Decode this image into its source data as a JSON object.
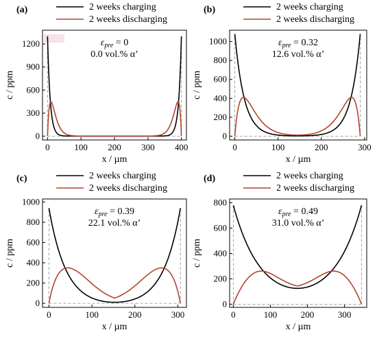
{
  "legend": {
    "charging": "2 weeks charging",
    "discharging": "2 weeks discharging"
  },
  "colors": {
    "charging": "#000000",
    "discharging": "#b0452a",
    "highlight": "#f5d9e6",
    "guide": "#888888"
  },
  "chart_data": [
    {
      "type": "line",
      "panel": "(a)",
      "eps_label": "ε",
      "eps_sub": "pre",
      "eps_value": " = 0",
      "alpha_text": "0.0 vol.% α’",
      "xlabel": "x / µm",
      "ylabel": "c / ppm",
      "xlim": [
        -15,
        415
      ],
      "ylim": [
        -50,
        1380
      ],
      "xticks": [
        0,
        100,
        200,
        300,
        400
      ],
      "yticks": [
        0,
        300,
        600,
        900,
        1200
      ],
      "length": 400,
      "series": [
        {
          "name": "2 weeks charging",
          "peak": 1300,
          "decay": 8,
          "type": "exp"
        },
        {
          "name": "2 weeks discharging",
          "peak": 450,
          "peak_x": 10,
          "decay": 6,
          "type": "hump"
        }
      ]
    },
    {
      "type": "line",
      "panel": "(b)",
      "eps_label": "ε",
      "eps_sub": "pre",
      "eps_value": " = 0.32",
      "alpha_text": "12.6 vol.% α’",
      "xlabel": "x / µm",
      "ylabel": "c / ppm",
      "xlim": [
        -12,
        305
      ],
      "ylim": [
        -40,
        1120
      ],
      "xticks": [
        0,
        100,
        200,
        300
      ],
      "yticks": [
        0,
        200,
        400,
        600,
        800,
        1000
      ],
      "length": 290,
      "series": [
        {
          "name": "2 weeks charging",
          "peak": 1080,
          "decay": 22,
          "type": "exp"
        },
        {
          "name": "2 weeks discharging",
          "peak": 410,
          "peak_x": 20,
          "decay": 22,
          "type": "hump"
        }
      ]
    },
    {
      "type": "line",
      "panel": "(c)",
      "eps_label": "ε",
      "eps_sub": "pre",
      "eps_value": " = 0.39",
      "alpha_text": "22.1 vol.% α’",
      "xlabel": "x / µm",
      "ylabel": "c / ppm",
      "xlim": [
        -15,
        320
      ],
      "ylim": [
        -40,
        1030
      ],
      "xticks": [
        0,
        100,
        200,
        300
      ],
      "yticks": [
        0,
        200,
        400,
        600,
        800,
        1000
      ],
      "length": 306,
      "series": [
        {
          "name": "2 weeks charging",
          "peak": 940,
          "min": 10,
          "shape": "charging",
          "k": 40
        },
        {
          "name": "2 weeks discharging",
          "peak_val": 375,
          "peak_x": 32,
          "min": 10,
          "shape": "discharging",
          "k": 40
        }
      ]
    },
    {
      "type": "line",
      "panel": "(d)",
      "eps_label": "ε",
      "eps_sub": "pre",
      "eps_value": " = 0.49",
      "alpha_text": "31.0 vol.% α’",
      "xlabel": "x / µm",
      "ylabel": "c / ppm",
      "xlim": [
        -10,
        360
      ],
      "ylim": [
        -25,
        830
      ],
      "xticks": [
        0,
        100,
        200,
        300
      ],
      "yticks": [
        0,
        200,
        400,
        600,
        800
      ],
      "length": 346,
      "series": [
        {
          "name": "2 weeks charging",
          "peak": 780,
          "min": 125,
          "shape": "charging",
          "k": 75
        },
        {
          "name": "2 weeks discharging",
          "peak_val": 285,
          "peak_x": 62,
          "min": 125,
          "shape": "discharging",
          "k": 75
        }
      ]
    }
  ]
}
